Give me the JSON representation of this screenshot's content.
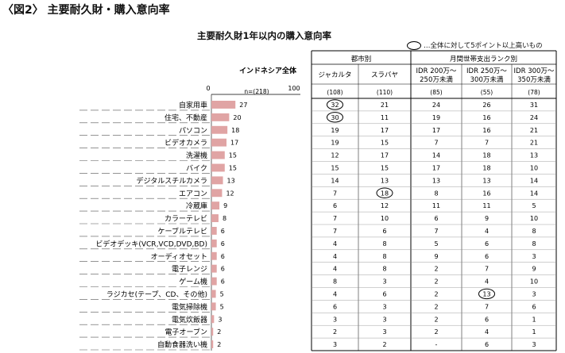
{
  "figure": {
    "title": "〈図2〉 主要耐久財・購入意向率",
    "legend_text": "…全体に対して5ポイント以上高いもの"
  },
  "chart_data": {
    "type": "bar",
    "title": "主要耐久財1年以内の購入意向率",
    "total_label": "インドネシア全体",
    "total_n": "n=(218)",
    "xlim": [
      0,
      100
    ],
    "x_ticks": [
      "0",
      "100"
    ],
    "categories": [
      "自家用車",
      "住宅、不動産",
      "パソコン",
      "ビデオカメラ",
      "洗濯機",
      "バイク",
      "デジタルスチルカメラ",
      "エアコン",
      "冷蔵庫",
      "カラーテレビ",
      "ケーブルテレビ",
      "ビデオデッキ(VCR,VCD,DVD,BD)",
      "オーディオセット",
      "電子レンジ",
      "ゲーム機",
      "ラジカセ(テープ、CD、その他)",
      "電気掃除機",
      "電気炊飯器",
      "電子オーブン",
      "自動食器洗い機"
    ],
    "values": [
      27,
      20,
      18,
      17,
      15,
      15,
      13,
      12,
      9,
      8,
      6,
      6,
      6,
      6,
      6,
      5,
      5,
      3,
      2,
      2
    ],
    "groups": [
      {
        "label": "都市別",
        "columns": [
          "ジャカルタ",
          "スラバヤ"
        ]
      },
      {
        "label": "月間世帯支出ランク別",
        "columns": [
          "IDR 200万～250万未満",
          "IDR 250万～300万未満",
          "IDR 300万～350万未満"
        ]
      }
    ],
    "columns": [
      {
        "line1": "ジャカルタ",
        "line2": "",
        "n": "(108)",
        "values": [
          "32",
          "30",
          "19",
          "19",
          "12",
          "15",
          "14",
          "7",
          "6",
          "7",
          "7",
          "4",
          "4",
          "4",
          "8",
          "4",
          "6",
          "3",
          "2",
          "3"
        ],
        "circled": [
          0,
          1
        ]
      },
      {
        "line1": "スラバヤ",
        "line2": "",
        "n": "(110)",
        "values": [
          "21",
          "11",
          "17",
          "15",
          "17",
          "15",
          "13",
          "18",
          "12",
          "10",
          "6",
          "8",
          "8",
          "8",
          "3",
          "6",
          "3",
          "3",
          "3",
          "2"
        ],
        "circled": [
          7
        ]
      },
      {
        "line1": "IDR 200万～",
        "line2": "250万未満",
        "n": "(85)",
        "values": [
          "24",
          "19",
          "17",
          "7",
          "14",
          "17",
          "13",
          "8",
          "11",
          "6",
          "7",
          "5",
          "9",
          "2",
          "2",
          "2",
          "2",
          "2",
          "2",
          "-"
        ],
        "circled": []
      },
      {
        "line1": "IDR 250万～",
        "line2": "300万未満",
        "n": "(55)",
        "values": [
          "26",
          "16",
          "16",
          "7",
          "18",
          "18",
          "13",
          "16",
          "11",
          "9",
          "4",
          "6",
          "6",
          "7",
          "4",
          "13",
          "7",
          "6",
          "4",
          "6"
        ],
        "circled": [
          15
        ]
      },
      {
        "line1": "IDR 300万～",
        "line2": "350万未満",
        "n": "(78)",
        "values": [
          "31",
          "24",
          "21",
          "21",
          "13",
          "10",
          "14",
          "14",
          "5",
          "10",
          "8",
          "8",
          "3",
          "9",
          "10",
          "3",
          "6",
          "1",
          "1",
          "3"
        ],
        "circled": []
      }
    ]
  }
}
